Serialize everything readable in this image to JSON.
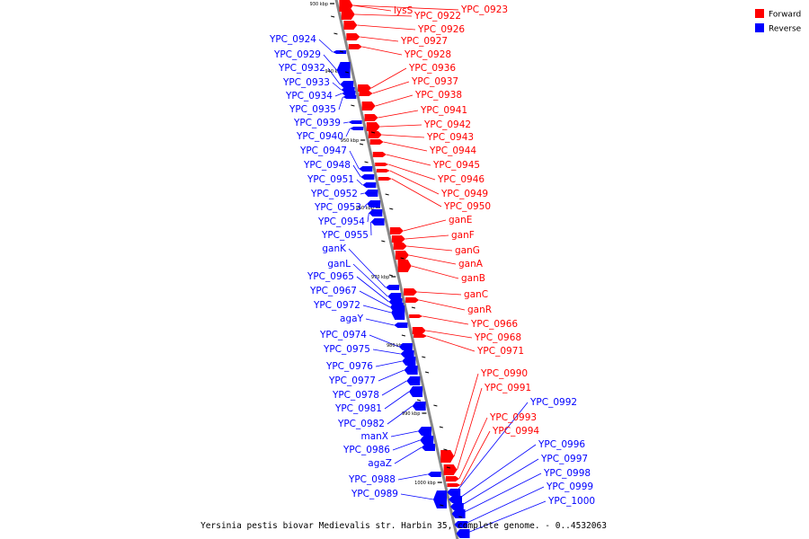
{
  "caption": "Yersinia pestis biovar Medievalis str. Harbin 35, complete genome. - 0..4532063",
  "colors": {
    "forward": "#ff0000",
    "reverse": "#0000ff",
    "backbone": "#888888"
  },
  "legend": [
    {
      "label": "Forward",
      "color": "#ff0000",
      "strand": "forward"
    },
    {
      "label": "Reverse",
      "color": "#0000ff",
      "strand": "reverse"
    }
  ],
  "ticks": [
    "930 kbp",
    "940 kbp",
    "950 kbp",
    "960 kbp",
    "970 kbp",
    "980 kbp",
    "990 kbp",
    "1000 kbp"
  ],
  "forward_genes": [
    "lysS",
    "YPC_0922",
    "YPC_0923",
    "YPC_0926",
    "YPC_0927",
    "YPC_0928",
    "YPC_0936",
    "YPC_0937",
    "YPC_0938",
    "YPC_0941",
    "YPC_0942",
    "YPC_0943",
    "YPC_0944",
    "YPC_0945",
    "YPC_0946",
    "YPC_0949",
    "YPC_0950",
    "ganE",
    "ganF",
    "ganG",
    "ganA",
    "ganB",
    "ganC",
    "ganR",
    "YPC_0966",
    "YPC_0968",
    "YPC_0971",
    "YPC_0990",
    "YPC_0991",
    "YPC_0993",
    "YPC_0994"
  ],
  "reverse_genes": [
    "YPC_0924",
    "YPC_0929",
    "YPC_0932",
    "YPC_0933",
    "YPC_0934",
    "YPC_0935",
    "YPC_0939",
    "YPC_0940",
    "YPC_0947",
    "YPC_0948",
    "YPC_0951",
    "YPC_0952",
    "YPC_0953",
    "YPC_0954",
    "YPC_0955",
    "ganK",
    "ganL",
    "YPC_0965",
    "YPC_0967",
    "YPC_0972",
    "agaY",
    "YPC_0974",
    "YPC_0975",
    "YPC_0976",
    "YPC_0977",
    "YPC_0978",
    "YPC_0981",
    "YPC_0982",
    "manX",
    "YPC_0986",
    "agaZ",
    "YPC_0988",
    "YPC_0989",
    "YPC_0992",
    "YPC_0996",
    "YPC_0997",
    "YPC_0998",
    "YPC_0999",
    "YPC_1000"
  ]
}
